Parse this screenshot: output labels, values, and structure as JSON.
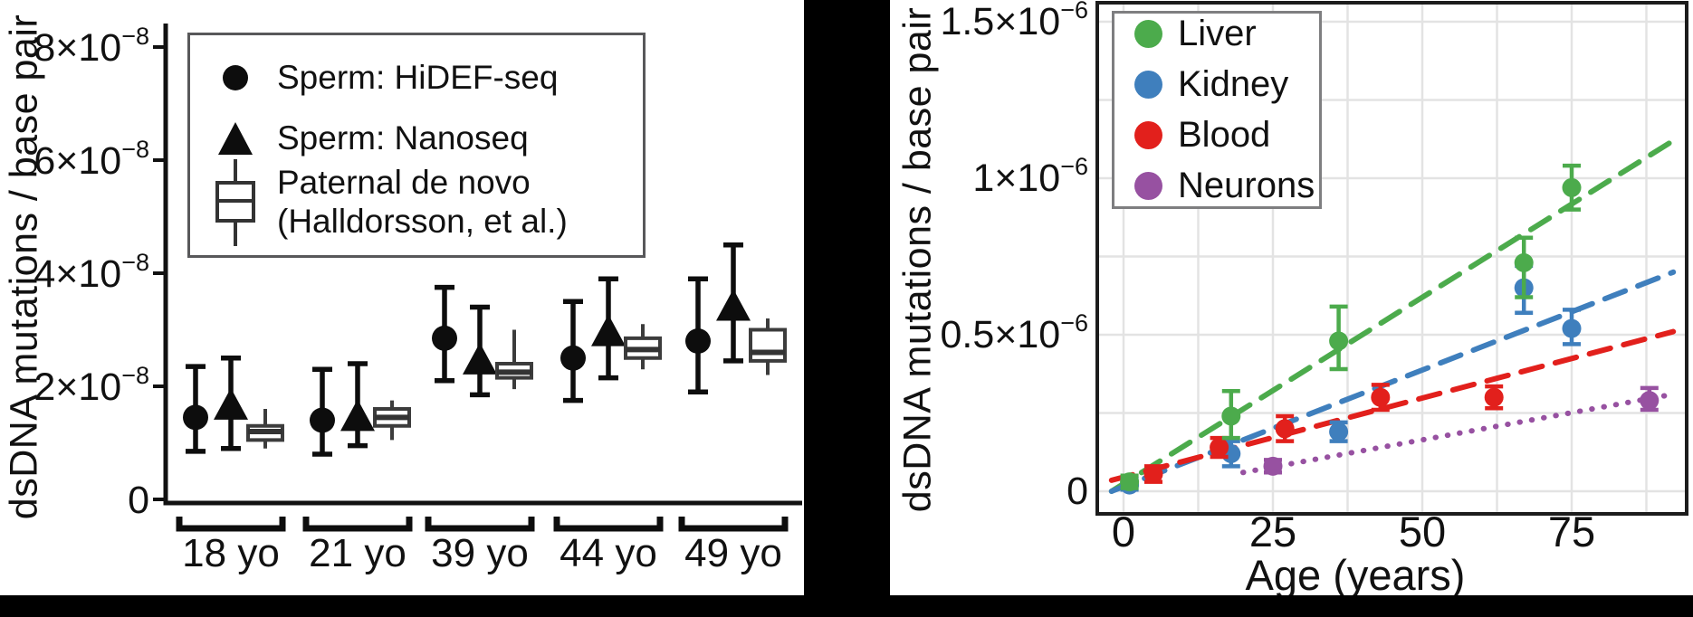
{
  "chart_data": [
    {
      "panel": "left",
      "type": "scatter",
      "title": "",
      "xlabel": "",
      "ylabel": "dsDNA mutations / base pair",
      "unit_scale": "1e-8",
      "ylim": [
        0,
        8.5
      ],
      "yticks": [
        {
          "value": 0,
          "base": "0",
          "exp": ""
        },
        {
          "value": 2,
          "base": "2×10",
          "exp": "−8"
        },
        {
          "value": 4,
          "base": "4×10",
          "exp": "−8"
        },
        {
          "value": 6,
          "base": "6×10",
          "exp": "−8"
        },
        {
          "value": 8,
          "base": "8×10",
          "exp": "−8"
        }
      ],
      "categories": [
        "18 yo",
        "21 yo",
        "39 yo",
        "44 yo",
        "49 yo"
      ],
      "series": [
        {
          "name": "Sperm: HiDEF-seq",
          "marker": "circle",
          "values": [
            1.45,
            1.4,
            2.85,
            2.5,
            2.8
          ],
          "err_lo": [
            0.85,
            0.8,
            2.1,
            1.75,
            1.9
          ],
          "err_hi": [
            2.35,
            2.3,
            3.75,
            3.5,
            3.9
          ]
        },
        {
          "name": "Sperm: Nanoseq",
          "marker": "triangle",
          "values": [
            1.65,
            1.45,
            2.45,
            2.95,
            3.4
          ],
          "err_lo": [
            0.9,
            0.95,
            1.85,
            2.15,
            2.45
          ],
          "err_hi": [
            2.5,
            2.4,
            3.4,
            3.9,
            4.5
          ]
        },
        {
          "name": "Paternal de novo (Halldorsson, et al.)",
          "marker": "boxplot",
          "boxes": [
            {
              "median": 1.2,
              "q1": 1.05,
              "q3": 1.3,
              "lo": 0.9,
              "hi": 1.6
            },
            {
              "median": 1.45,
              "q1": 1.3,
              "q3": 1.6,
              "lo": 1.05,
              "hi": 1.75
            },
            {
              "median": 2.25,
              "q1": 2.15,
              "q3": 2.4,
              "lo": 1.95,
              "hi": 3.0
            },
            {
              "median": 2.65,
              "q1": 2.5,
              "q3": 2.85,
              "lo": 2.3,
              "hi": 3.1
            },
            {
              "median": 2.6,
              "q1": 2.45,
              "q3": 3.0,
              "lo": 2.2,
              "hi": 3.2
            }
          ]
        }
      ],
      "legend": [
        {
          "marker": "circle",
          "line1": "Sperm: HiDEF-seq",
          "line2": ""
        },
        {
          "marker": "triangle",
          "line1": "Sperm: Nanoseq",
          "line2": ""
        },
        {
          "marker": "boxplot",
          "line1": "Paternal de novo",
          "line2": "(Halldorsson, et al.)"
        }
      ]
    },
    {
      "panel": "right",
      "type": "scatter",
      "title": "",
      "xlabel": "Age (years)",
      "ylabel": "dsDNA mutations / base pair",
      "unit_scale": "1e-6",
      "xlim": [
        -4.5,
        94
      ],
      "ylim": [
        0,
        1.56
      ],
      "grid": {
        "x_step": 12.5,
        "y_step": 0.25,
        "on": true
      },
      "xticks": [
        0,
        25,
        50,
        75
      ],
      "yticks": [
        {
          "value": 0,
          "base": "0",
          "exp": ""
        },
        {
          "value": 0.5,
          "base": "0.5×10",
          "exp": "−6"
        },
        {
          "value": 1,
          "base": "1×10",
          "exp": "−6"
        },
        {
          "value": 1.5,
          "base": "1.5×10",
          "exp": "−6"
        }
      ],
      "series": [
        {
          "name": "Liver",
          "color": "#4cab4c",
          "line_style": "dashed",
          "points": [
            {
              "x": 1,
              "y": 0.03,
              "lo": 0.01,
              "hi": 0.05
            },
            {
              "x": 18,
              "y": 0.24,
              "lo": 0.17,
              "hi": 0.32
            },
            {
              "x": 36,
              "y": 0.48,
              "lo": 0.39,
              "hi": 0.59
            },
            {
              "x": 67,
              "y": 0.73,
              "lo": 0.62,
              "hi": 0.81
            },
            {
              "x": 75,
              "y": 0.97,
              "lo": 0.9,
              "hi": 1.04
            }
          ],
          "trend": {
            "x1": -2,
            "y1": 0.0,
            "x2": 92,
            "y2": 1.12
          }
        },
        {
          "name": "Kidney",
          "color": "#3f7fbd",
          "line_style": "dashed",
          "points": [
            {
              "x": 1,
              "y": 0.02,
              "lo": 0.005,
              "hi": 0.04
            },
            {
              "x": 18,
              "y": 0.12,
              "lo": 0.08,
              "hi": 0.16
            },
            {
              "x": 36,
              "y": 0.19,
              "lo": 0.16,
              "hi": 0.22
            },
            {
              "x": 67,
              "y": 0.65,
              "lo": 0.57,
              "hi": 0.72
            },
            {
              "x": 75,
              "y": 0.52,
              "lo": 0.47,
              "hi": 0.58
            }
          ],
          "trend": {
            "x1": -2,
            "y1": 0.0,
            "x2": 92,
            "y2": 0.7
          }
        },
        {
          "name": "Blood",
          "color": "#e2201c",
          "line_style": "dashed",
          "points": [
            {
              "x": 5,
              "y": 0.055,
              "lo": 0.03,
              "hi": 0.08
            },
            {
              "x": 16,
              "y": 0.14,
              "lo": 0.11,
              "hi": 0.17
            },
            {
              "x": 27,
              "y": 0.2,
              "lo": 0.16,
              "hi": 0.24
            },
            {
              "x": 43,
              "y": 0.3,
              "lo": 0.26,
              "hi": 0.34
            },
            {
              "x": 62,
              "y": 0.3,
              "lo": 0.265,
              "hi": 0.335
            }
          ],
          "trend": {
            "x1": -2,
            "y1": 0.035,
            "x2": 92,
            "y2": 0.51
          }
        },
        {
          "name": "Neurons",
          "color": "#9751a1",
          "line_style": "dotted",
          "points": [
            {
              "x": 25,
              "y": 0.08,
              "lo": 0.06,
              "hi": 0.1
            },
            {
              "x": 88,
              "y": 0.29,
              "lo": 0.26,
              "hi": 0.33
            }
          ],
          "trend": {
            "x1": 20,
            "y1": 0.06,
            "x2": 92,
            "y2": 0.31
          }
        }
      ],
      "legend": [
        {
          "label": "Liver"
        },
        {
          "label": "Kidney"
        },
        {
          "label": "Blood"
        },
        {
          "label": "Neurons"
        }
      ]
    }
  ]
}
